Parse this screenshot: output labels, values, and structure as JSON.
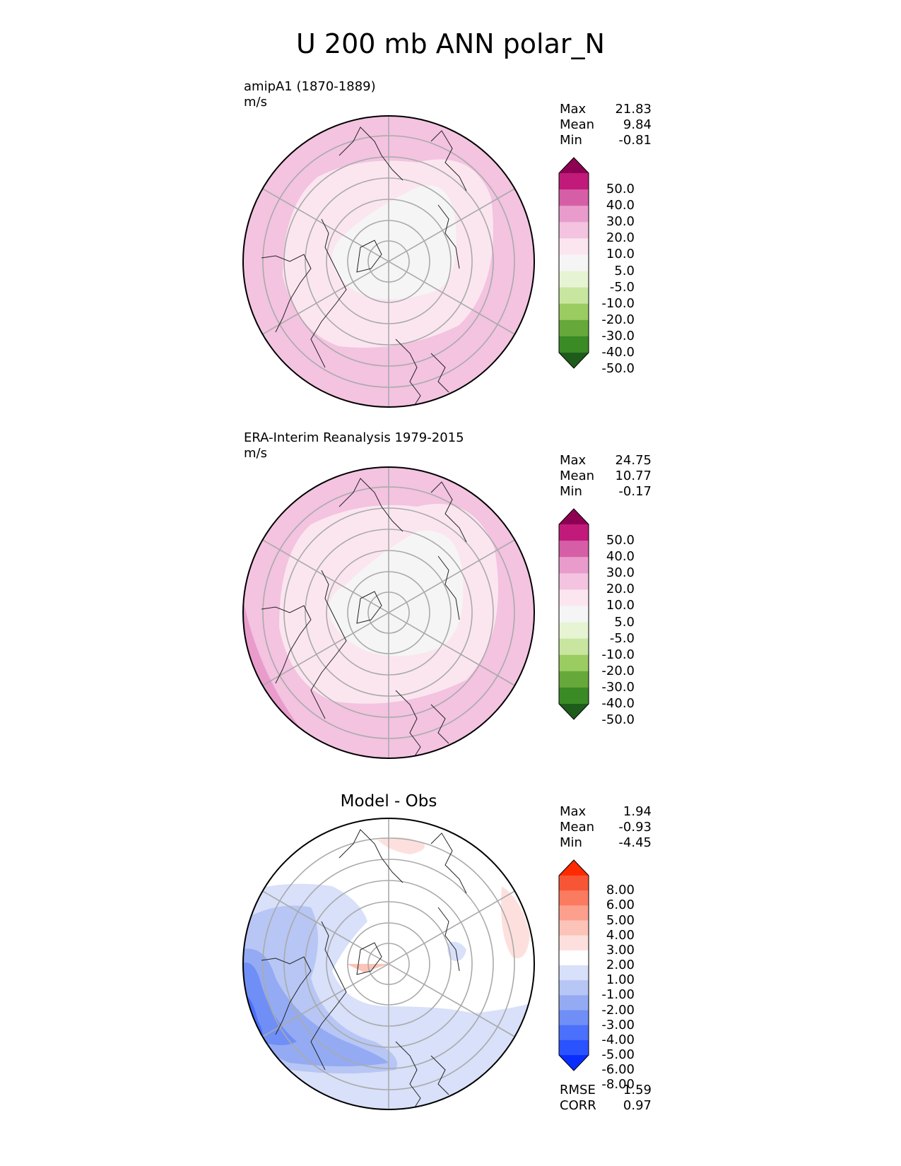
{
  "figure": {
    "title": "U 200 mb ANN polar_N"
  },
  "panels": [
    {
      "id": "test",
      "title": "amipA1 (1870-1889)",
      "units": "m/s",
      "stats": {
        "Max": "21.83",
        "Mean": "9.84",
        "Min": "-0.81"
      },
      "colorbar": {
        "colors": [
          "#1e5c1c",
          "#3a8a26",
          "#66a93a",
          "#9acc62",
          "#c8e6a0",
          "#e6f4d4",
          "#f5f5f5",
          "#fbe6f0",
          "#f3c3e0",
          "#e99ccb",
          "#d65ea6",
          "#c11a7b",
          "#8e0152"
        ],
        "labels": [
          "50.0",
          "40.0",
          "30.0",
          "20.0",
          "10.0",
          "5.0",
          "-5.0",
          "-10.0",
          "-20.0",
          "-30.0",
          "-40.0",
          "-50.0"
        ]
      }
    },
    {
      "id": "reference",
      "title": "ERA-Interim Reanalysis 1979-2015",
      "units": "m/s",
      "stats": {
        "Max": "24.75",
        "Mean": "10.77",
        "Min": "-0.17"
      },
      "colorbar": {
        "colors": [
          "#1e5c1c",
          "#3a8a26",
          "#66a93a",
          "#9acc62",
          "#c8e6a0",
          "#e6f4d4",
          "#f5f5f5",
          "#fbe6f0",
          "#f3c3e0",
          "#e99ccb",
          "#d65ea6",
          "#c11a7b",
          "#8e0152"
        ],
        "labels": [
          "50.0",
          "40.0",
          "30.0",
          "20.0",
          "10.0",
          "5.0",
          "-5.0",
          "-10.0",
          "-20.0",
          "-30.0",
          "-40.0",
          "-50.0"
        ]
      }
    },
    {
      "id": "difference",
      "title": "Model - Obs",
      "stats": {
        "Max": "1.94",
        "Mean": "-0.93",
        "Min": "-4.45"
      },
      "metrics": {
        "RMSE": "1.59",
        "CORR": "0.97"
      },
      "colorbar": {
        "colors": [
          "#0a2dff",
          "#2a52ff",
          "#4b70fb",
          "#6f8ff6",
          "#94abf3",
          "#b7c6f4",
          "#d8e0fa",
          "#ffffff",
          "#fde0dd",
          "#fcc4b8",
          "#fca08d",
          "#fb7b60",
          "#f75636",
          "#ff2a00"
        ],
        "labels": [
          "8.00",
          "6.00",
          "5.00",
          "4.00",
          "3.00",
          "2.00",
          "1.00",
          "-1.00",
          "-2.00",
          "-3.00",
          "-4.00",
          "-5.00",
          "-6.00",
          "-8.00"
        ]
      }
    }
  ]
}
